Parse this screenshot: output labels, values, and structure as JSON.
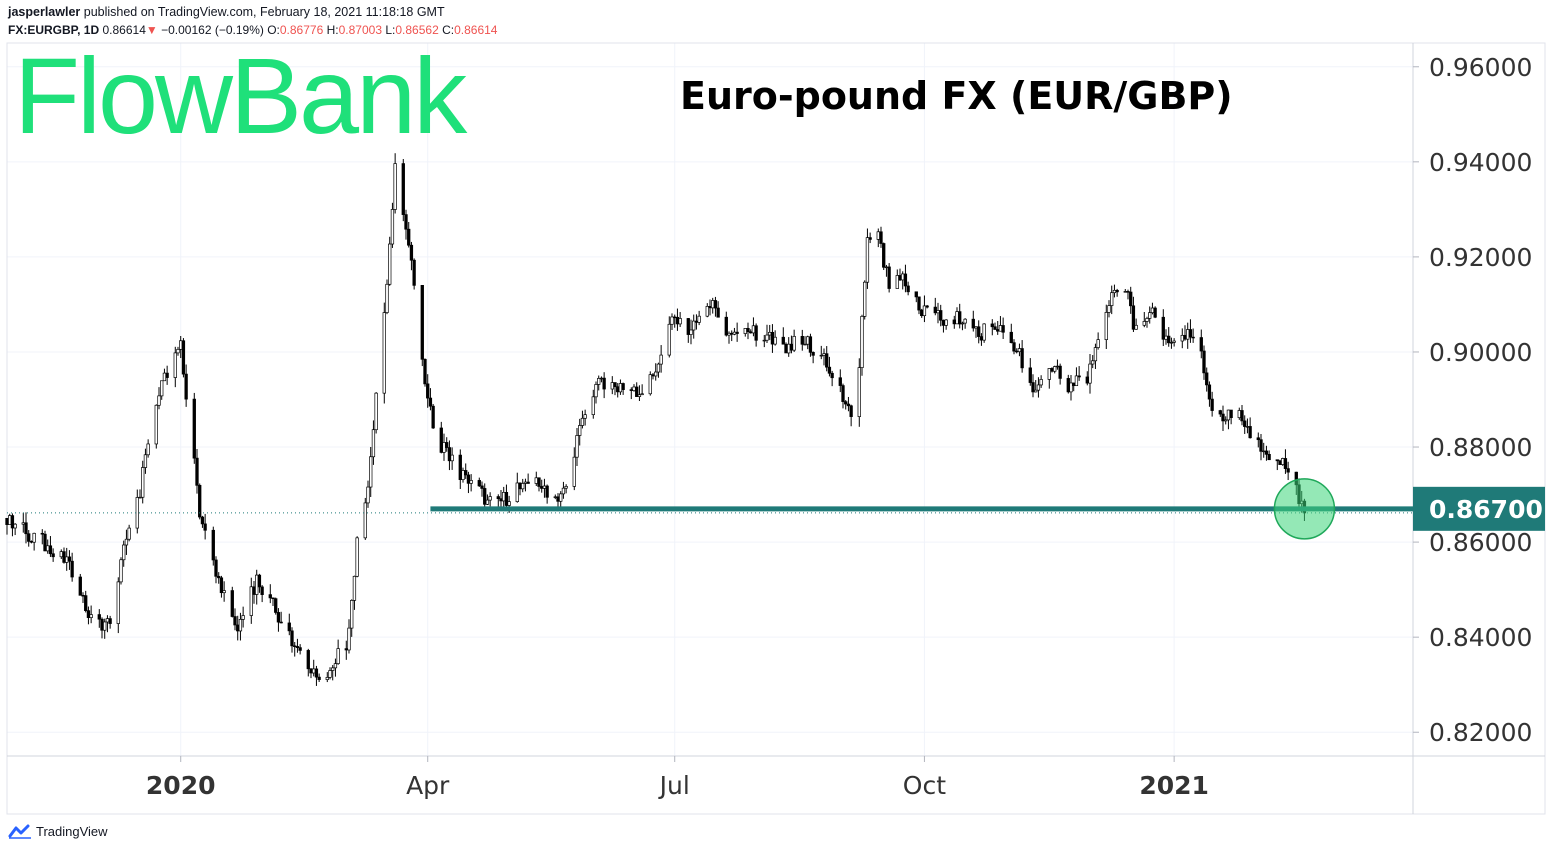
{
  "header": {
    "author": "jasperlawler",
    "published_text": " published on TradingView.com, February 18, 2021 11:18:18 GMT",
    "symbol": "FX:EURGBP, 1D",
    "last": "0.86614",
    "change": "−0.00162 (−0.19%)",
    "open_label": "O:",
    "open": "0.86776",
    "high_label": "H:",
    "high": "0.87003",
    "low_label": "L:",
    "low": "0.86562",
    "close_label": "C:",
    "close": "0.86614"
  },
  "brand": {
    "logo_text": "FlowBank",
    "footer": "TradingView"
  },
  "colors": {
    "logo_green": "#1fe07a",
    "support_line": "#1f7a78",
    "down": "#ef5350",
    "candle": "#000000",
    "highlight": "#3dd67a"
  },
  "chart_data": {
    "type": "candlestick",
    "title": "Euro-pound FX (EUR/GBP)",
    "y_ticks": [
      "0.96000",
      "0.94000",
      "0.92000",
      "0.90000",
      "0.88000",
      "0.86000",
      "0.84000",
      "0.82000"
    ],
    "ylim": [
      0.815,
      0.965
    ],
    "x_ticks": [
      {
        "label": "2020",
        "date": "2020-01-01",
        "bold": true
      },
      {
        "label": "Apr",
        "date": "2020-04-01",
        "bold": false
      },
      {
        "label": "Jul",
        "date": "2020-07-01",
        "bold": false
      },
      {
        "label": "Oct",
        "date": "2020-10-01",
        "bold": false
      },
      {
        "label": "2021",
        "date": "2021-01-01",
        "bold": true
      }
    ],
    "xlim": [
      "2019-10-29",
      "2021-03-30"
    ],
    "support_level": {
      "value": 0.867,
      "label": "0.86700",
      "from": "2020-04-02"
    },
    "last_price": 0.86614,
    "highlight": {
      "date": "2021-02-18",
      "value": 0.867
    },
    "path": [
      [
        "2019-10-29",
        0.865
      ],
      [
        "2019-11-05",
        0.862
      ],
      [
        "2019-11-10",
        0.861
      ],
      [
        "2019-11-15",
        0.857
      ],
      [
        "2019-11-20",
        0.856
      ],
      [
        "2019-11-26",
        0.847
      ],
      [
        "2019-12-02",
        0.843
      ],
      [
        "2019-12-06",
        0.843
      ],
      [
        "2019-12-12",
        0.862
      ],
      [
        "2019-12-16",
        0.868
      ],
      [
        "2019-12-20",
        0.88
      ],
      [
        "2019-12-24",
        0.892
      ],
      [
        "2019-12-28",
        0.896
      ],
      [
        "2020-01-01",
        0.901
      ],
      [
        "2020-01-08",
        0.866
      ],
      [
        "2020-01-15",
        0.852
      ],
      [
        "2020-01-22",
        0.843
      ],
      [
        "2020-01-29",
        0.852
      ],
      [
        "2020-02-05",
        0.846
      ],
      [
        "2020-02-12",
        0.838
      ],
      [
        "2020-02-19",
        0.832
      ],
      [
        "2020-02-24",
        0.833
      ],
      [
        "2020-03-02",
        0.838
      ],
      [
        "2020-03-06",
        0.86
      ],
      [
        "2020-03-10",
        0.873
      ],
      [
        "2020-03-13",
        0.89
      ],
      [
        "2020-03-17",
        0.915
      ],
      [
        "2020-03-20",
        0.939
      ],
      [
        "2020-03-24",
        0.926
      ],
      [
        "2020-03-27",
        0.915
      ],
      [
        "2020-03-31",
        0.895
      ],
      [
        "2020-04-03",
        0.883
      ],
      [
        "2020-04-09",
        0.878
      ],
      [
        "2020-04-16",
        0.872
      ],
      [
        "2020-04-23",
        0.869
      ],
      [
        "2020-04-29",
        0.869
      ],
      [
        "2020-05-06",
        0.872
      ],
      [
        "2020-05-12",
        0.873
      ],
      [
        "2020-05-18",
        0.869
      ],
      [
        "2020-05-22",
        0.872
      ],
      [
        "2020-05-28",
        0.887
      ],
      [
        "2020-06-03",
        0.893
      ],
      [
        "2020-06-09",
        0.892
      ],
      [
        "2020-06-15",
        0.892
      ],
      [
        "2020-06-19",
        0.892
      ],
      [
        "2020-06-24",
        0.897
      ],
      [
        "2020-06-30",
        0.907
      ],
      [
        "2020-07-06",
        0.905
      ],
      [
        "2020-07-14",
        0.91
      ],
      [
        "2020-07-20",
        0.905
      ],
      [
        "2020-07-27",
        0.904
      ],
      [
        "2020-08-03",
        0.904
      ],
      [
        "2020-08-10",
        0.901
      ],
      [
        "2020-08-17",
        0.903
      ],
      [
        "2020-08-24",
        0.899
      ],
      [
        "2020-08-31",
        0.892
      ],
      [
        "2020-09-04",
        0.888
      ],
      [
        "2020-09-07",
        0.898
      ],
      [
        "2020-09-10",
        0.923
      ],
      [
        "2020-09-14",
        0.924
      ],
      [
        "2020-09-18",
        0.915
      ],
      [
        "2020-09-24",
        0.915
      ],
      [
        "2020-10-01",
        0.908
      ],
      [
        "2020-10-08",
        0.907
      ],
      [
        "2020-10-15",
        0.907
      ],
      [
        "2020-10-22",
        0.904
      ],
      [
        "2020-10-29",
        0.906
      ],
      [
        "2020-11-05",
        0.899
      ],
      [
        "2020-11-11",
        0.892
      ],
      [
        "2020-11-16",
        0.897
      ],
      [
        "2020-11-23",
        0.893
      ],
      [
        "2020-11-30",
        0.894
      ],
      [
        "2020-12-04",
        0.902
      ],
      [
        "2020-12-08",
        0.91
      ],
      [
        "2020-12-11",
        0.914
      ],
      [
        "2020-12-15",
        0.911
      ],
      [
        "2020-12-18",
        0.904
      ],
      [
        "2020-12-23",
        0.91
      ],
      [
        "2020-12-29",
        0.902
      ],
      [
        "2021-01-05",
        0.904
      ],
      [
        "2021-01-11",
        0.9
      ],
      [
        "2021-01-15",
        0.888
      ],
      [
        "2021-01-20",
        0.887
      ],
      [
        "2021-01-26",
        0.886
      ],
      [
        "2021-02-01",
        0.881
      ],
      [
        "2021-02-05",
        0.876
      ],
      [
        "2021-02-10",
        0.877
      ],
      [
        "2021-02-14",
        0.873
      ],
      [
        "2021-02-18",
        0.8661
      ]
    ]
  }
}
